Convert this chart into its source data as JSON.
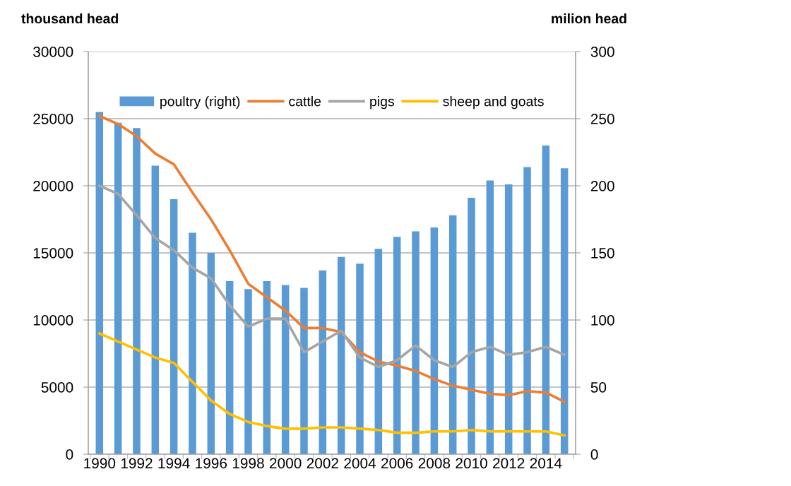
{
  "chart_data": {
    "type": "bar",
    "categories": [
      "1990",
      null,
      "1992",
      null,
      "1994",
      null,
      "1996",
      null,
      "1998",
      null,
      "2000",
      null,
      "2002",
      null,
      "2004",
      null,
      "2006",
      null,
      "2008",
      null,
      "2010",
      null,
      "2012",
      null,
      "2014",
      null
    ],
    "ylabel": "thousand head",
    "y2label": "milion head",
    "ylim": [
      0,
      30000
    ],
    "yticks": [
      0,
      5000,
      10000,
      15000,
      20000,
      25000,
      30000
    ],
    "y2lim": [
      0,
      300
    ],
    "y2ticks": [
      0,
      50,
      100,
      150,
      200,
      250,
      300
    ],
    "grid": "y",
    "legend": "top",
    "series": [
      {
        "name": "poultry (right)",
        "axis": "y2",
        "color": "#5b9bd5",
        "values": [
          255,
          247,
          243,
          215,
          190,
          165,
          150,
          129,
          123,
          129,
          126,
          124,
          137,
          147,
          142,
          153,
          162,
          166,
          169,
          178,
          191,
          204,
          201,
          214,
          230,
          213
        ]
      },
      {
        "name": "cattle",
        "type": "line",
        "color": "#ed7d31",
        "values": [
          25200,
          24600,
          23700,
          22400,
          21600,
          19500,
          17500,
          15200,
          12700,
          11700,
          10700,
          9400,
          9400,
          9100,
          7600,
          6900,
          6600,
          6200,
          5600,
          5100,
          4800,
          4500,
          4400,
          4700,
          4600,
          3900
        ]
      },
      {
        "name": "pigs",
        "type": "line",
        "color": "#a5a5a5",
        "values": [
          20000,
          19400,
          17800,
          16100,
          15200,
          13900,
          13100,
          11100,
          9500,
          10100,
          10100,
          7600,
          8400,
          9200,
          7200,
          6500,
          7000,
          8100,
          7000,
          6500,
          7600,
          8000,
          7400,
          7600,
          8000,
          7400
        ]
      },
      {
        "name": "sheep and goats",
        "type": "line",
        "color": "#ffc000",
        "values": [
          9000,
          8400,
          7800,
          7200,
          6800,
          5400,
          4000,
          3000,
          2400,
          2100,
          1900,
          1900,
          2000,
          2000,
          1900,
          1800,
          1600,
          1600,
          1700,
          1700,
          1800,
          1700,
          1700,
          1700,
          1700,
          1400
        ]
      }
    ]
  }
}
